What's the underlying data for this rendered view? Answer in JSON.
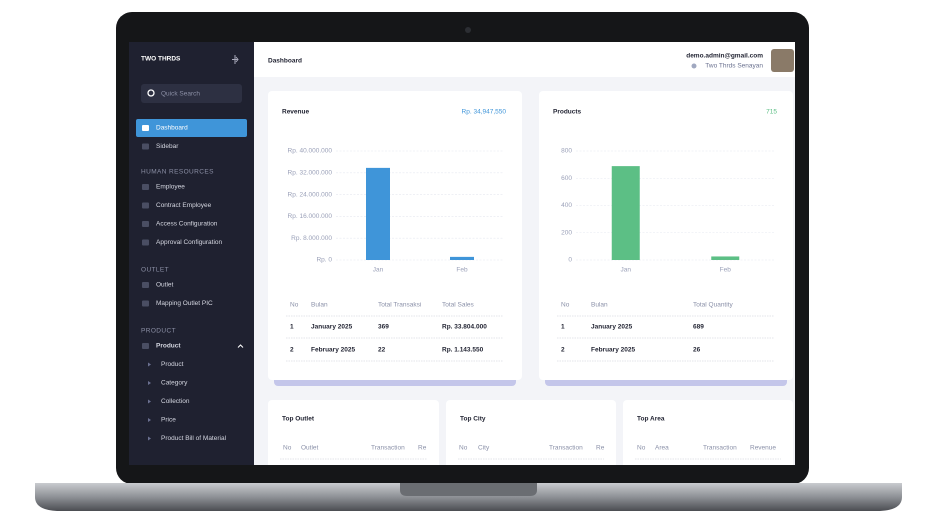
{
  "sidebar": {
    "brand": "TWO THRDS",
    "search": "Quick Search",
    "groups": [
      {
        "title": null,
        "items": [
          "Dashboard",
          "Sidebar"
        ]
      },
      {
        "title": "HUMAN RESOURCES",
        "items": [
          "Employee",
          "Contract Employee",
          "Access Configuration",
          "Approval Configuration"
        ]
      },
      {
        "title": "OUTLET",
        "items": [
          "Outlet",
          "Mapping Outlet PIC"
        ]
      },
      {
        "title": "PRODUCT",
        "items": [
          "Product"
        ],
        "subitems": [
          "Product",
          "Category",
          "Collection",
          "Price",
          "Product Bill of Material"
        ]
      }
    ]
  },
  "header": {
    "title": "Dashboard",
    "email": "demo.admin@gmail.com",
    "outlet": "Two Thrds Senayan"
  },
  "revenue": {
    "title": "Revenue",
    "total": "Rp. 34,947,550",
    "chart": {
      "type": "bar",
      "categories": [
        "Jan",
        "Feb"
      ],
      "values": [
        33804000,
        1143550
      ],
      "color": "#3f95d9",
      "ylim": [
        0,
        40000000
      ],
      "yticks": [
        {
          "value": 0,
          "label": "Rp. 0"
        },
        {
          "value": 8000000,
          "label": "Rp. 8.000.000"
        },
        {
          "value": 16000000,
          "label": "Rp. 16.000.000"
        },
        {
          "value": 24000000,
          "label": "Rp. 24.000.000"
        },
        {
          "value": 32000000,
          "label": "Rp. 32.000.000"
        },
        {
          "value": 40000000,
          "label": "Rp. 40.000.000"
        }
      ],
      "grid": true
    },
    "table": {
      "columns": [
        "No",
        "Bulan",
        "Total Transaksi",
        "Total Sales"
      ],
      "rows": [
        [
          1,
          "January 2025",
          369,
          "Rp. 33.804.000"
        ],
        [
          2,
          "February 2025",
          22,
          "Rp. 1.143.550"
        ]
      ]
    }
  },
  "products": {
    "title": "Products",
    "total": 715,
    "chart": {
      "type": "bar",
      "categories": [
        "Jan",
        "Feb"
      ],
      "values": [
        689,
        26
      ],
      "color": "#5cbf85",
      "ylim": [
        0,
        800
      ],
      "yticks": [
        0,
        200,
        400,
        600,
        800
      ],
      "grid": true
    },
    "table": {
      "columns": [
        "No",
        "Bulan",
        "Total Quantity"
      ],
      "rows": [
        [
          1,
          "January 2025",
          689
        ],
        [
          2,
          "February 2025",
          26
        ]
      ]
    }
  },
  "bottom": [
    {
      "title": "Top Outlet",
      "columns": [
        "No",
        "Outlet",
        "Transaction",
        "Re"
      ]
    },
    {
      "title": "Top City",
      "columns": [
        "No",
        "City",
        "Transaction",
        "Re"
      ]
    },
    {
      "title": "Top Area",
      "columns": [
        "No",
        "Area",
        "Transaction",
        "Revenue"
      ]
    }
  ]
}
